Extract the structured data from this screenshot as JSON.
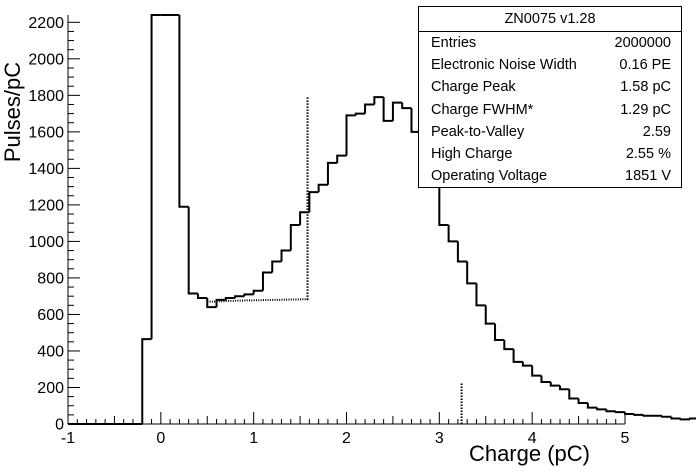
{
  "chart_data": {
    "type": "histogram",
    "title": "",
    "xlabel": "Charge (pC)",
    "ylabel": "Pulses/pC",
    "xlim": [
      -1,
      5
    ],
    "ylim": [
      0,
      2240
    ],
    "x_ticks": [
      -1,
      0,
      1,
      2,
      3,
      4,
      5
    ],
    "y_ticks": [
      0,
      200,
      400,
      600,
      800,
      1000,
      1200,
      1400,
      1600,
      1800,
      2000,
      2200
    ],
    "bin_width": 0.1,
    "bins_start": -0.3,
    "series": [
      {
        "values": [
          0,
          465,
          2240,
          2240,
          2240,
          1190,
          715,
          690,
          640,
          680,
          690,
          700,
          710,
          730,
          830,
          890,
          950,
          1090,
          1160,
          1270,
          1310,
          1430,
          1470,
          1690,
          1700,
          1750,
          1790,
          1660,
          1760,
          1730,
          1600,
          1480,
          1320,
          1090,
          1000,
          890,
          770,
          650,
          550,
          460,
          410,
          340,
          320,
          265,
          230,
          210,
          190,
          140,
          115,
          90,
          80,
          70,
          65,
          55,
          50,
          45,
          45,
          40,
          30,
          25,
          30,
          30,
          20,
          20,
          25,
          15,
          15,
          15,
          10,
          10,
          10,
          10,
          10,
          15,
          10,
          5,
          5,
          5,
          5,
          5,
          0
        ]
      }
    ],
    "below_peak_bins": [
      {
        "x": 0.5,
        "y": 670
      },
      {
        "x": 0.6,
        "y": 672
      },
      {
        "x": 0.7,
        "y": 674
      },
      {
        "x": 0.8,
        "y": 676
      },
      {
        "x": 0.9,
        "y": 677
      },
      {
        "x": 1.0,
        "y": 678
      },
      {
        "x": 1.1,
        "y": 679
      },
      {
        "x": 1.2,
        "y": 680
      },
      {
        "x": 1.3,
        "y": 681
      },
      {
        "x": 1.4,
        "y": 682
      },
      {
        "x": 1.5,
        "y": 683
      }
    ],
    "marker_lines": [
      {
        "x": 1.58,
        "y_from": 680,
        "y_to": 1790
      },
      {
        "x": 3.24,
        "y_from": 0,
        "y_to": 230
      }
    ],
    "grid": false,
    "stats_box": {
      "title": "ZN0075 v1.28",
      "placement": "top-right",
      "rows": [
        {
          "label": "Entries",
          "value": "2000000"
        },
        {
          "label": "Electronic Noise Width",
          "value": "0.16 PE"
        },
        {
          "label": "Charge Peak",
          "value": "1.58 pC"
        },
        {
          "label": "Charge FWHM*",
          "value": "1.29 pC"
        },
        {
          "label": "Peak-to-Valley",
          "value": "2.59"
        },
        {
          "label": "High Charge",
          "value": "2.55 %"
        },
        {
          "label": "Operating Voltage",
          "value": "1851 V"
        }
      ]
    }
  }
}
